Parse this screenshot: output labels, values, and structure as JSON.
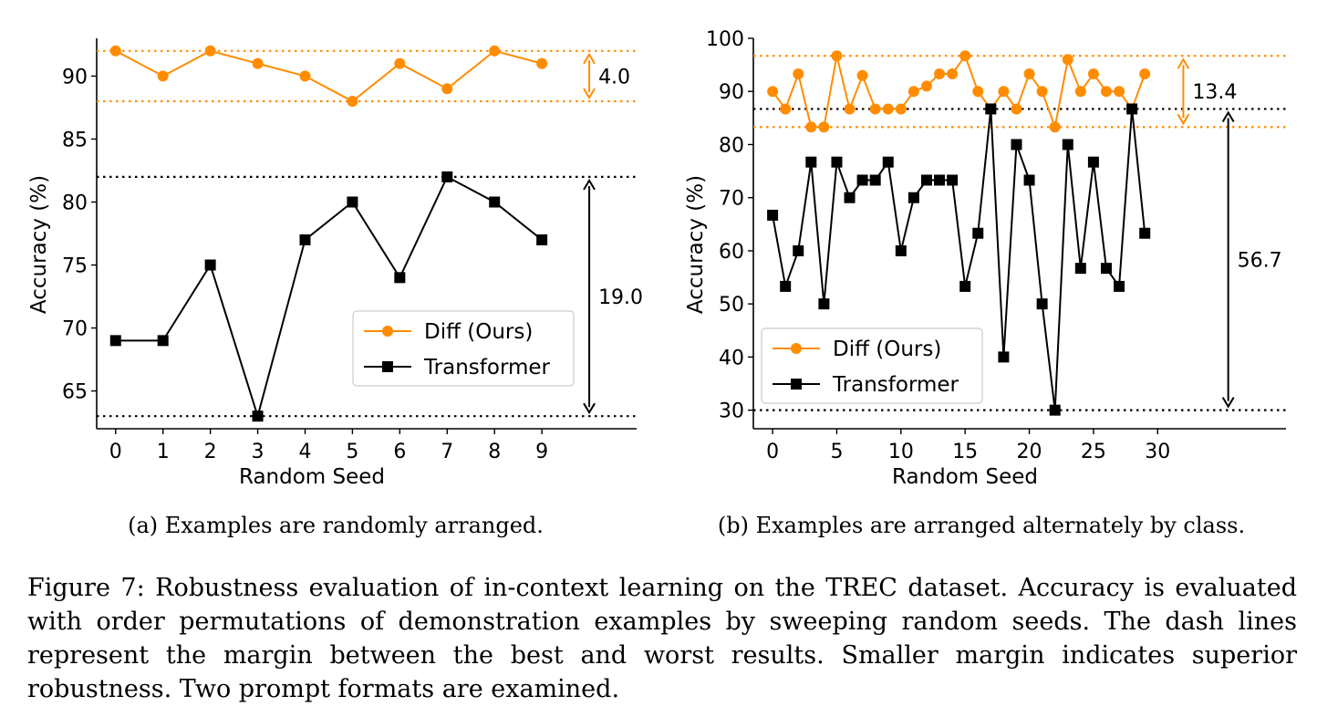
{
  "colors": {
    "diff": "#ff8c00",
    "transformer": "#000000"
  },
  "figure_caption": "Figure 7: Robustness evaluation of in-context learning on the TREC dataset. Accuracy is evaluated with order permutations of demonstration examples by sweeping random seeds.  The dash lines represent the margin between the best and worst results. Smaller margin indicates superior robustness. Two prompt formats are examined.",
  "chart_data": [
    {
      "type": "line",
      "caption": "(a) Examples are randomly arranged.",
      "xlabel": "Random Seed",
      "ylabel": "Accuracy (%)",
      "xlim": [
        -0.4,
        11.0
      ],
      "ylim": [
        62.0,
        93.0
      ],
      "xticks": [
        0,
        1,
        2,
        3,
        4,
        5,
        6,
        7,
        8,
        9
      ],
      "yticks": [
        65,
        70,
        75,
        80,
        85,
        90
      ],
      "legend": "lower-right",
      "series": [
        {
          "name": "Diff (Ours)",
          "marker": "circle",
          "color": "#ff8c00",
          "x": [
            0,
            1,
            2,
            3,
            4,
            5,
            6,
            7,
            8,
            9
          ],
          "y": [
            92,
            90,
            92,
            91,
            90,
            88,
            91,
            89,
            92,
            91
          ]
        },
        {
          "name": "Transformer",
          "marker": "square",
          "color": "#000000",
          "x": [
            0,
            1,
            2,
            3,
            4,
            5,
            6,
            7,
            8,
            9
          ],
          "y": [
            69,
            69,
            75,
            63,
            77,
            80,
            74,
            82,
            80,
            77
          ]
        }
      ],
      "hlines": [
        {
          "y": 92,
          "color": "#ff8c00"
        },
        {
          "y": 88,
          "color": "#ff8c00"
        },
        {
          "y": 82,
          "color": "#000000"
        },
        {
          "y": 63,
          "color": "#000000"
        }
      ],
      "annotations": [
        {
          "label": "4.0",
          "from": 88,
          "to": 92,
          "x": 10.0,
          "color": "#ff8c00"
        },
        {
          "label": "19.0",
          "from": 63,
          "to": 82,
          "x": 10.0,
          "color": "#000000"
        }
      ]
    },
    {
      "type": "line",
      "caption": "(b) Examples are arranged alternately by class.",
      "xlabel": "Random Seed",
      "ylabel": "Accuracy (%)",
      "xlim": [
        -1.5,
        40.0
      ],
      "ylim": [
        26.5,
        100.0
      ],
      "xticks": [
        0,
        5,
        10,
        15,
        20,
        25,
        30
      ],
      "yticks": [
        30,
        40,
        50,
        60,
        70,
        80,
        90,
        100
      ],
      "legend": "lower-left",
      "series": [
        {
          "name": "Diff (Ours)",
          "marker": "circle",
          "color": "#ff8c00",
          "x": [
            0,
            1,
            2,
            3,
            4,
            5,
            6,
            7,
            8,
            9,
            10,
            11,
            12,
            13,
            14,
            15,
            16,
            17,
            18,
            19,
            20,
            21,
            22,
            23,
            24,
            25,
            26,
            27,
            28,
            29
          ],
          "y": [
            90,
            86.7,
            93.3,
            83.3,
            83.3,
            96.7,
            86.7,
            93,
            86.7,
            86.7,
            86.7,
            90,
            91,
            93.3,
            93.3,
            96.7,
            90,
            86.7,
            90,
            86.7,
            93.3,
            90,
            83.3,
            96,
            90,
            93.3,
            90,
            90,
            86.7,
            93.3
          ]
        },
        {
          "name": "Transformer",
          "marker": "square",
          "color": "#000000",
          "x": [
            0,
            1,
            2,
            3,
            4,
            5,
            6,
            7,
            8,
            9,
            10,
            11,
            12,
            13,
            14,
            15,
            16,
            17,
            18,
            19,
            20,
            21,
            22,
            23,
            24,
            25,
            26,
            27,
            28,
            29
          ],
          "y": [
            66.7,
            53.3,
            60,
            76.7,
            50,
            76.7,
            70,
            73.3,
            73.3,
            76.7,
            60,
            70,
            73.3,
            73.3,
            73.3,
            53.3,
            63.3,
            86.7,
            40,
            80,
            73.3,
            50,
            30,
            80,
            56.7,
            76.7,
            56.7,
            53.3,
            86.7,
            63.3
          ]
        }
      ],
      "hlines": [
        {
          "y": 96.7,
          "color": "#ff8c00"
        },
        {
          "y": 83.3,
          "color": "#ff8c00"
        },
        {
          "y": 86.7,
          "color": "#000000"
        },
        {
          "y": 30,
          "color": "#000000"
        }
      ],
      "annotations": [
        {
          "label": "13.4",
          "from": 83.3,
          "to": 96.7,
          "x": 32.0,
          "color": "#ff8c00"
        },
        {
          "label": "56.7",
          "from": 30,
          "to": 86.7,
          "x": 35.5,
          "color": "#000000"
        }
      ]
    }
  ]
}
